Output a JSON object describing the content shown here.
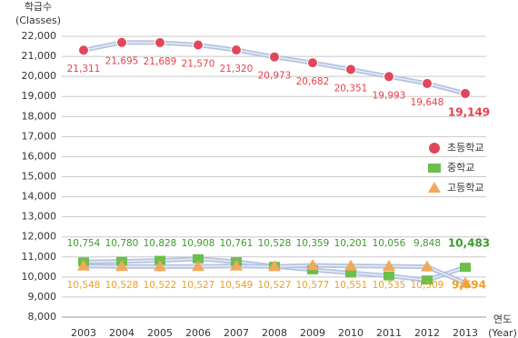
{
  "chart_data": {
    "type": "line",
    "y_label": [
      "학급수",
      "(Classes)"
    ],
    "x_label": [
      "연도",
      "(Year)"
    ],
    "categories": [
      "2003",
      "2004",
      "2005",
      "2006",
      "2007",
      "2008",
      "2009",
      "2010",
      "2011",
      "2012",
      "2013"
    ],
    "series": [
      {
        "name": "초등학교",
        "color": "#e0485a",
        "label_color": "#e8404c",
        "marker": "circle",
        "values": [
          21311,
          21695,
          21689,
          21570,
          21320,
          20973,
          20682,
          20351,
          19993,
          19648,
          19149
        ],
        "value_labels": [
          "21,311",
          "21,695",
          "21,689",
          "21,570",
          "21,320",
          "20,973",
          "20,682",
          "20,351",
          "19,993",
          "19,648",
          "19,149"
        ]
      },
      {
        "name": "중학교",
        "color": "#6cbf4a",
        "label_color": "#3e9a2c",
        "marker": "square",
        "values": [
          10754,
          10780,
          10828,
          10908,
          10761,
          10528,
          10359,
          10201,
          10056,
          9848,
          10483
        ],
        "value_labels": [
          "10,754",
          "10,780",
          "10,828",
          "10,908",
          "10,761",
          "10,528",
          "10,359",
          "10,201",
          "10,056",
          "9,848",
          "10,483"
        ]
      },
      {
        "name": "고등학교",
        "color": "#f2a85a",
        "label_color": "#f0a020",
        "marker": "triangle",
        "values": [
          10548,
          10528,
          10522,
          10527,
          10549,
          10527,
          10577,
          10551,
          10535,
          10509,
          9694
        ],
        "value_labels": [
          "10,548",
          "10,528",
          "10,522",
          "10,527",
          "10,549",
          "10,527",
          "10,577",
          "10,551",
          "10,535",
          "10,509",
          "9,694"
        ]
      }
    ],
    "ylim": [
      8000,
      22000
    ],
    "yticks": [
      {
        "value": 8000,
        "label": "8,000"
      },
      {
        "value": 9000,
        "label": "9,000"
      },
      {
        "value": 10000,
        "label": "10,000"
      },
      {
        "value": 11000,
        "label": "11,000"
      },
      {
        "value": 12000,
        "label": "12,000"
      },
      {
        "value": 13000,
        "label": "13,000"
      },
      {
        "value": 14000,
        "label": "14,000"
      },
      {
        "value": 15000,
        "label": "15,000"
      },
      {
        "value": 16000,
        "label": "16,000"
      },
      {
        "value": 17000,
        "label": "17,000"
      },
      {
        "value": 18000,
        "label": "18,000"
      },
      {
        "value": 19000,
        "label": "19,000"
      },
      {
        "value": 20000,
        "label": "20,000"
      },
      {
        "value": 21000,
        "label": "21,000"
      },
      {
        "value": 22000,
        "label": "22,000"
      }
    ],
    "grid": true
  }
}
